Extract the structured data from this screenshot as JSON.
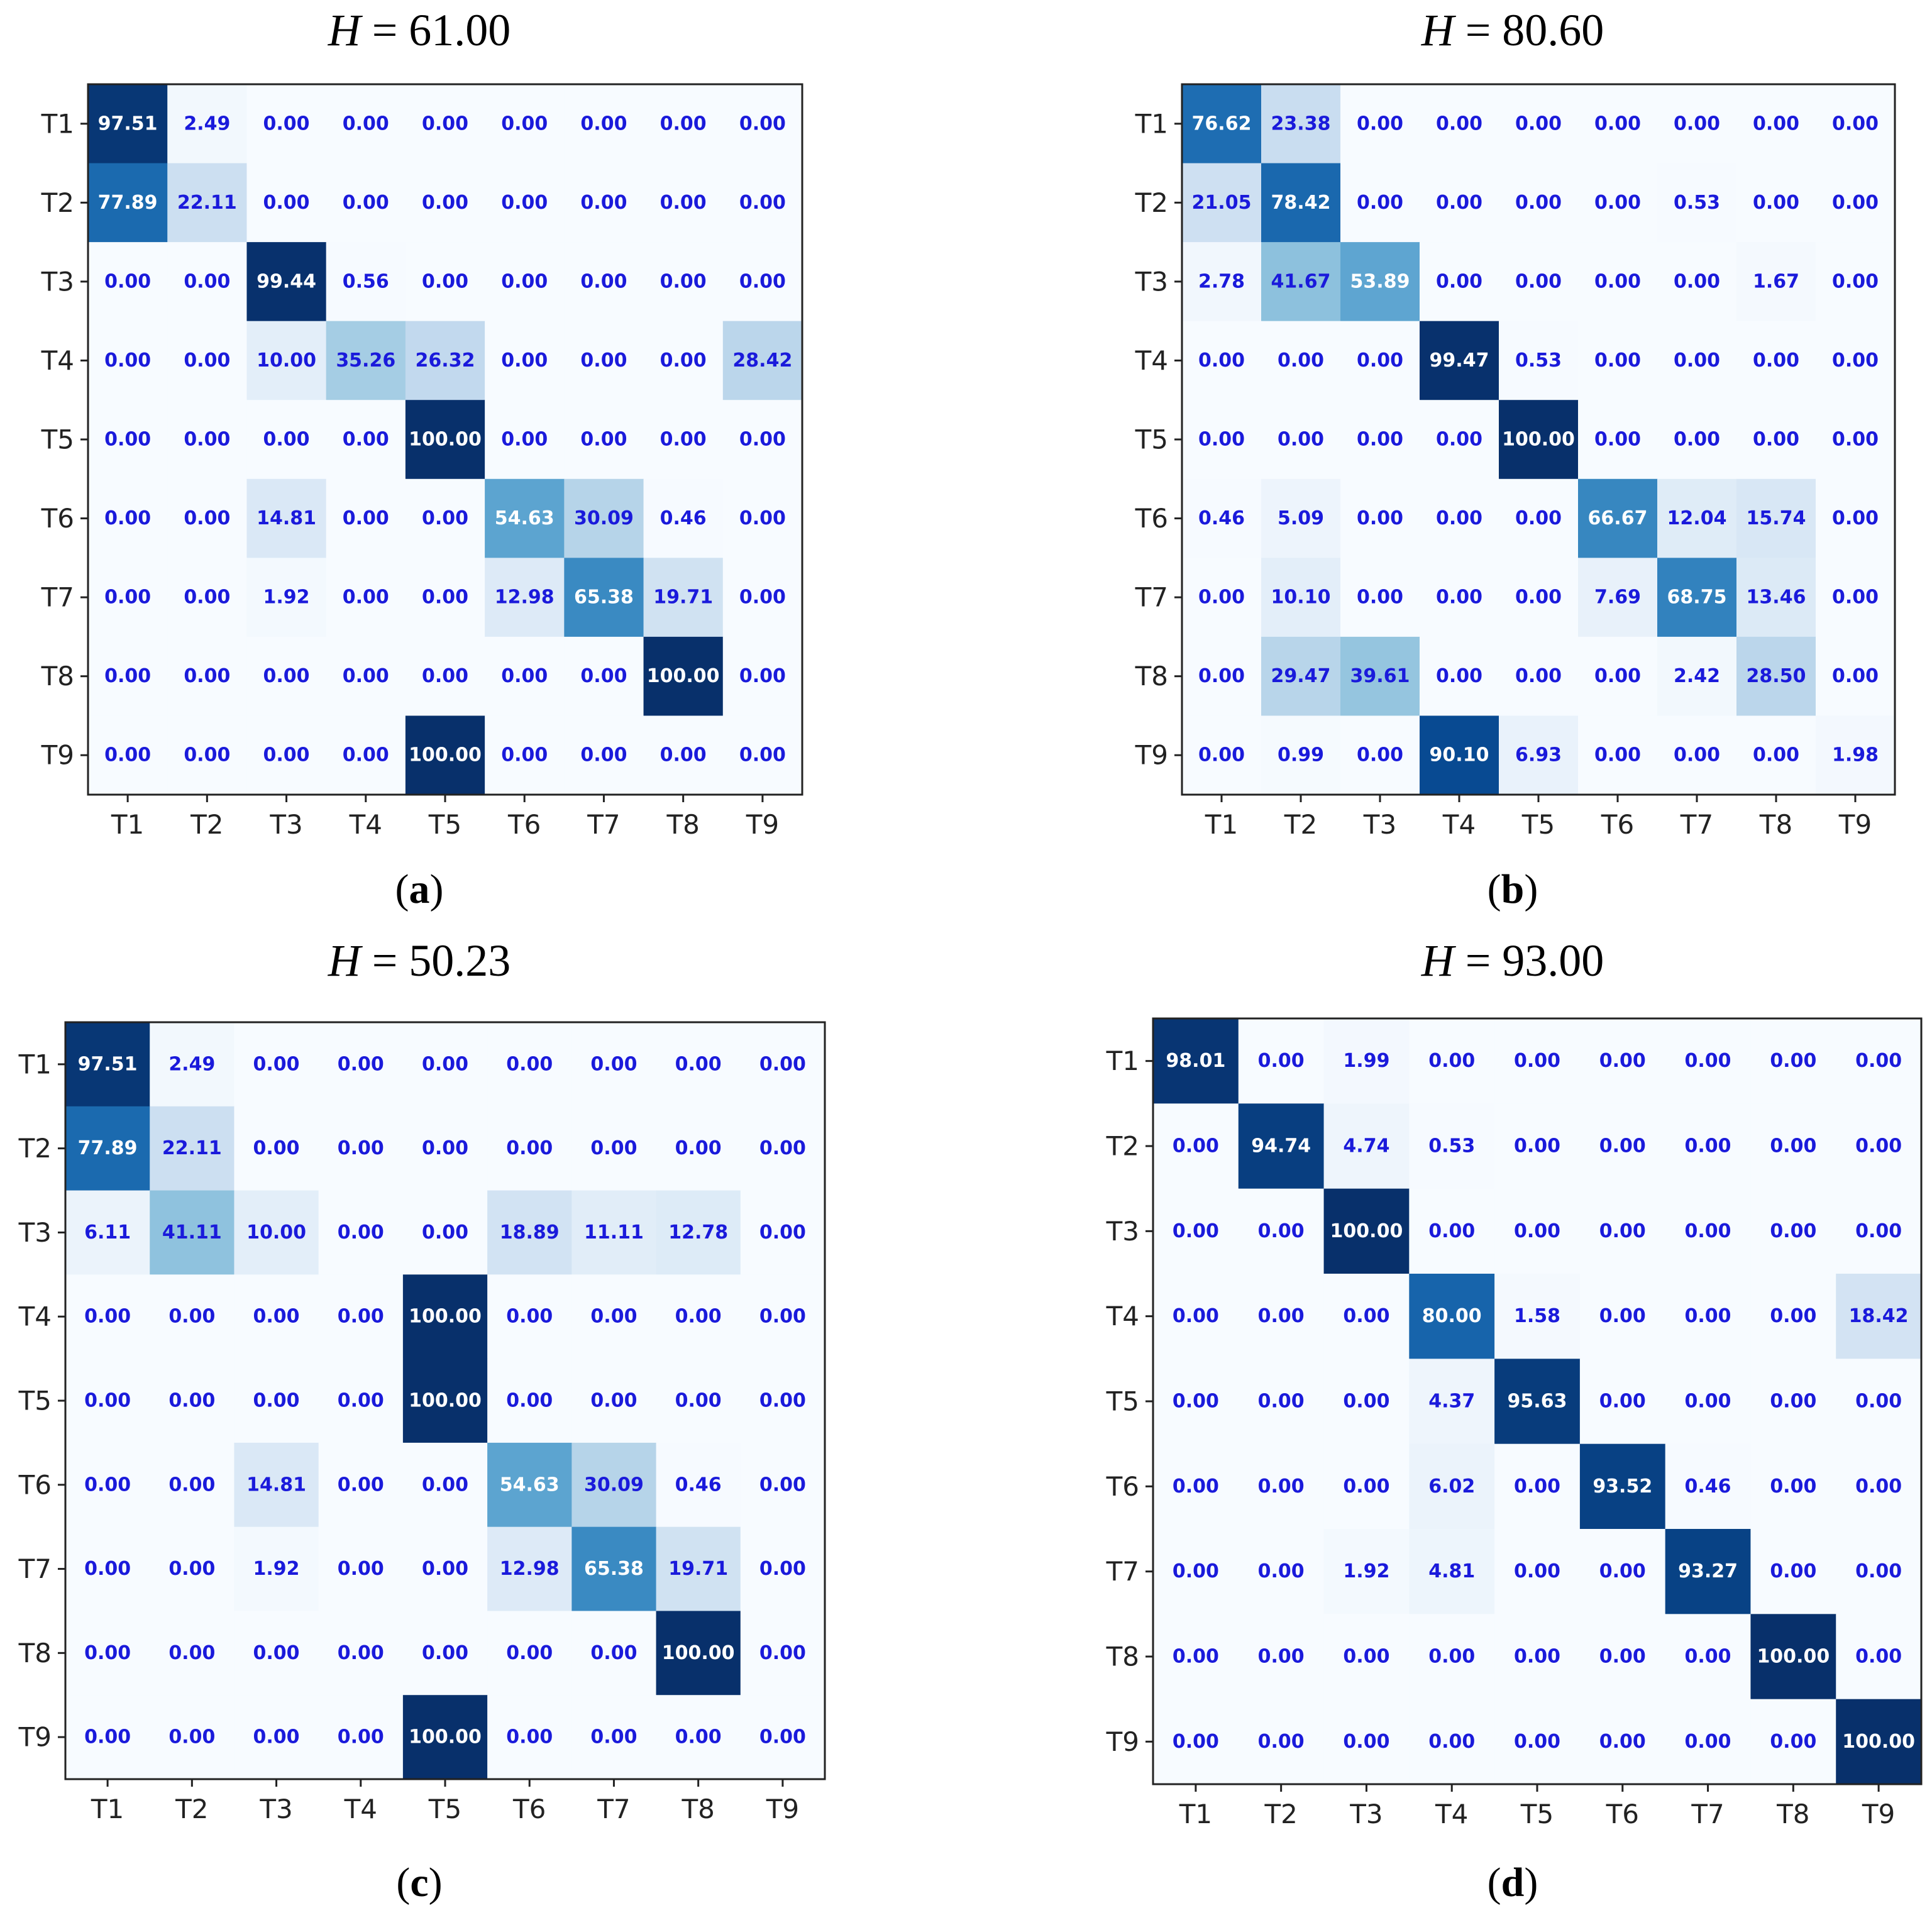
{
  "chart_data": [
    {
      "type": "heatmap",
      "title_var": "H",
      "title_value": "= 61.00",
      "caption": "a",
      "xlabels": [
        "T1",
        "T2",
        "T3",
        "T4",
        "T5",
        "T6",
        "T7",
        "T8",
        "T9"
      ],
      "ylabels": [
        "T1",
        "T2",
        "T3",
        "T4",
        "T5",
        "T6",
        "T7",
        "T8",
        "T9"
      ],
      "value_range": [
        0,
        100
      ],
      "colormap": "Blues",
      "values": [
        [
          97.51,
          2.49,
          0.0,
          0.0,
          0.0,
          0.0,
          0.0,
          0.0,
          0.0
        ],
        [
          77.89,
          22.11,
          0.0,
          0.0,
          0.0,
          0.0,
          0.0,
          0.0,
          0.0
        ],
        [
          0.0,
          0.0,
          99.44,
          0.56,
          0.0,
          0.0,
          0.0,
          0.0,
          0.0
        ],
        [
          0.0,
          0.0,
          10.0,
          35.26,
          26.32,
          0.0,
          0.0,
          0.0,
          28.42
        ],
        [
          0.0,
          0.0,
          0.0,
          0.0,
          100.0,
          0.0,
          0.0,
          0.0,
          0.0
        ],
        [
          0.0,
          0.0,
          14.81,
          0.0,
          0.0,
          54.63,
          30.09,
          0.46,
          0.0
        ],
        [
          0.0,
          0.0,
          1.92,
          0.0,
          0.0,
          12.98,
          65.38,
          19.71,
          0.0
        ],
        [
          0.0,
          0.0,
          0.0,
          0.0,
          0.0,
          0.0,
          0.0,
          100.0,
          0.0
        ],
        [
          0.0,
          0.0,
          0.0,
          0.0,
          100.0,
          0.0,
          0.0,
          0.0,
          0.0
        ]
      ]
    },
    {
      "type": "heatmap",
      "title_var": "H",
      "title_value": "= 80.60",
      "caption": "b",
      "xlabels": [
        "T1",
        "T2",
        "T3",
        "T4",
        "T5",
        "T6",
        "T7",
        "T8",
        "T9"
      ],
      "ylabels": [
        "T1",
        "T2",
        "T3",
        "T4",
        "T5",
        "T6",
        "T7",
        "T8",
        "T9"
      ],
      "value_range": [
        0,
        100
      ],
      "colormap": "Blues",
      "values": [
        [
          76.62,
          23.38,
          0.0,
          0.0,
          0.0,
          0.0,
          0.0,
          0.0,
          0.0
        ],
        [
          21.05,
          78.42,
          0.0,
          0.0,
          0.0,
          0.0,
          0.53,
          0.0,
          0.0
        ],
        [
          2.78,
          41.67,
          53.89,
          0.0,
          0.0,
          0.0,
          0.0,
          1.67,
          0.0
        ],
        [
          0.0,
          0.0,
          0.0,
          99.47,
          0.53,
          0.0,
          0.0,
          0.0,
          0.0
        ],
        [
          0.0,
          0.0,
          0.0,
          0.0,
          100.0,
          0.0,
          0.0,
          0.0,
          0.0
        ],
        [
          0.46,
          5.09,
          0.0,
          0.0,
          0.0,
          66.67,
          12.04,
          15.74,
          0.0
        ],
        [
          0.0,
          10.1,
          0.0,
          0.0,
          0.0,
          7.69,
          68.75,
          13.46,
          0.0
        ],
        [
          0.0,
          29.47,
          39.61,
          0.0,
          0.0,
          0.0,
          2.42,
          28.5,
          0.0
        ],
        [
          0.0,
          0.99,
          0.0,
          90.1,
          6.93,
          0.0,
          0.0,
          0.0,
          1.98
        ]
      ]
    },
    {
      "type": "heatmap",
      "title_var": "H",
      "title_value": "= 50.23",
      "caption": "c",
      "xlabels": [
        "T1",
        "T2",
        "T3",
        "T4",
        "T5",
        "T6",
        "T7",
        "T8",
        "T9"
      ],
      "ylabels": [
        "T1",
        "T2",
        "T3",
        "T4",
        "T5",
        "T6",
        "T7",
        "T8",
        "T9"
      ],
      "value_range": [
        0,
        100
      ],
      "colormap": "Blues",
      "values": [
        [
          97.51,
          2.49,
          0.0,
          0.0,
          0.0,
          0.0,
          0.0,
          0.0,
          0.0
        ],
        [
          77.89,
          22.11,
          0.0,
          0.0,
          0.0,
          0.0,
          0.0,
          0.0,
          0.0
        ],
        [
          6.11,
          41.11,
          10.0,
          0.0,
          0.0,
          18.89,
          11.11,
          12.78,
          0.0
        ],
        [
          0.0,
          0.0,
          0.0,
          0.0,
          100.0,
          0.0,
          0.0,
          0.0,
          0.0
        ],
        [
          0.0,
          0.0,
          0.0,
          0.0,
          100.0,
          0.0,
          0.0,
          0.0,
          0.0
        ],
        [
          0.0,
          0.0,
          14.81,
          0.0,
          0.0,
          54.63,
          30.09,
          0.46,
          0.0
        ],
        [
          0.0,
          0.0,
          1.92,
          0.0,
          0.0,
          12.98,
          65.38,
          19.71,
          0.0
        ],
        [
          0.0,
          0.0,
          0.0,
          0.0,
          0.0,
          0.0,
          0.0,
          100.0,
          0.0
        ],
        [
          0.0,
          0.0,
          0.0,
          0.0,
          100.0,
          0.0,
          0.0,
          0.0,
          0.0
        ]
      ]
    },
    {
      "type": "heatmap",
      "title_var": "H",
      "title_value": "= 93.00",
      "caption": "d",
      "xlabels": [
        "T1",
        "T2",
        "T3",
        "T4",
        "T5",
        "T6",
        "T7",
        "T8",
        "T9"
      ],
      "ylabels": [
        "T1",
        "T2",
        "T3",
        "T4",
        "T5",
        "T6",
        "T7",
        "T8",
        "T9"
      ],
      "value_range": [
        0,
        100
      ],
      "colormap": "Blues",
      "values": [
        [
          98.01,
          0.0,
          1.99,
          0.0,
          0.0,
          0.0,
          0.0,
          0.0,
          0.0
        ],
        [
          0.0,
          94.74,
          4.74,
          0.53,
          0.0,
          0.0,
          0.0,
          0.0,
          0.0
        ],
        [
          0.0,
          0.0,
          100.0,
          0.0,
          0.0,
          0.0,
          0.0,
          0.0,
          0.0
        ],
        [
          0.0,
          0.0,
          0.0,
          80.0,
          1.58,
          0.0,
          0.0,
          0.0,
          18.42
        ],
        [
          0.0,
          0.0,
          0.0,
          4.37,
          95.63,
          0.0,
          0.0,
          0.0,
          0.0
        ],
        [
          0.0,
          0.0,
          0.0,
          6.02,
          0.0,
          93.52,
          0.46,
          0.0,
          0.0
        ],
        [
          0.0,
          0.0,
          1.92,
          4.81,
          0.0,
          0.0,
          93.27,
          0.0,
          0.0
        ],
        [
          0.0,
          0.0,
          0.0,
          0.0,
          0.0,
          0.0,
          0.0,
          100.0,
          0.0
        ],
        [
          0.0,
          0.0,
          0.0,
          0.0,
          0.0,
          0.0,
          0.0,
          0.0,
          100.0
        ]
      ]
    }
  ]
}
